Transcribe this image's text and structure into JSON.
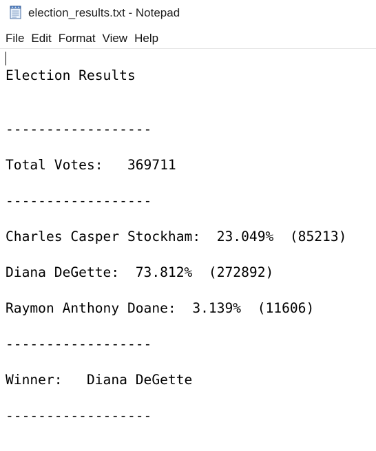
{
  "window": {
    "title": "election_results.txt - Notepad",
    "icon": "notepad-icon"
  },
  "menu": {
    "items": [
      "File",
      "Edit",
      "Format",
      "View",
      "Help"
    ]
  },
  "document": {
    "lines": [
      "Election Results",
      "------------------",
      "Total Votes:   369711",
      "------------------",
      "Charles Casper Stockham:  23.049%  (85213)",
      "Diana DeGette:  73.812%  (272892)",
      "Raymon Anthony Doane:  3.139%  (11606)",
      "------------------",
      "Winner:   Diana DeGette",
      "------------------"
    ]
  }
}
